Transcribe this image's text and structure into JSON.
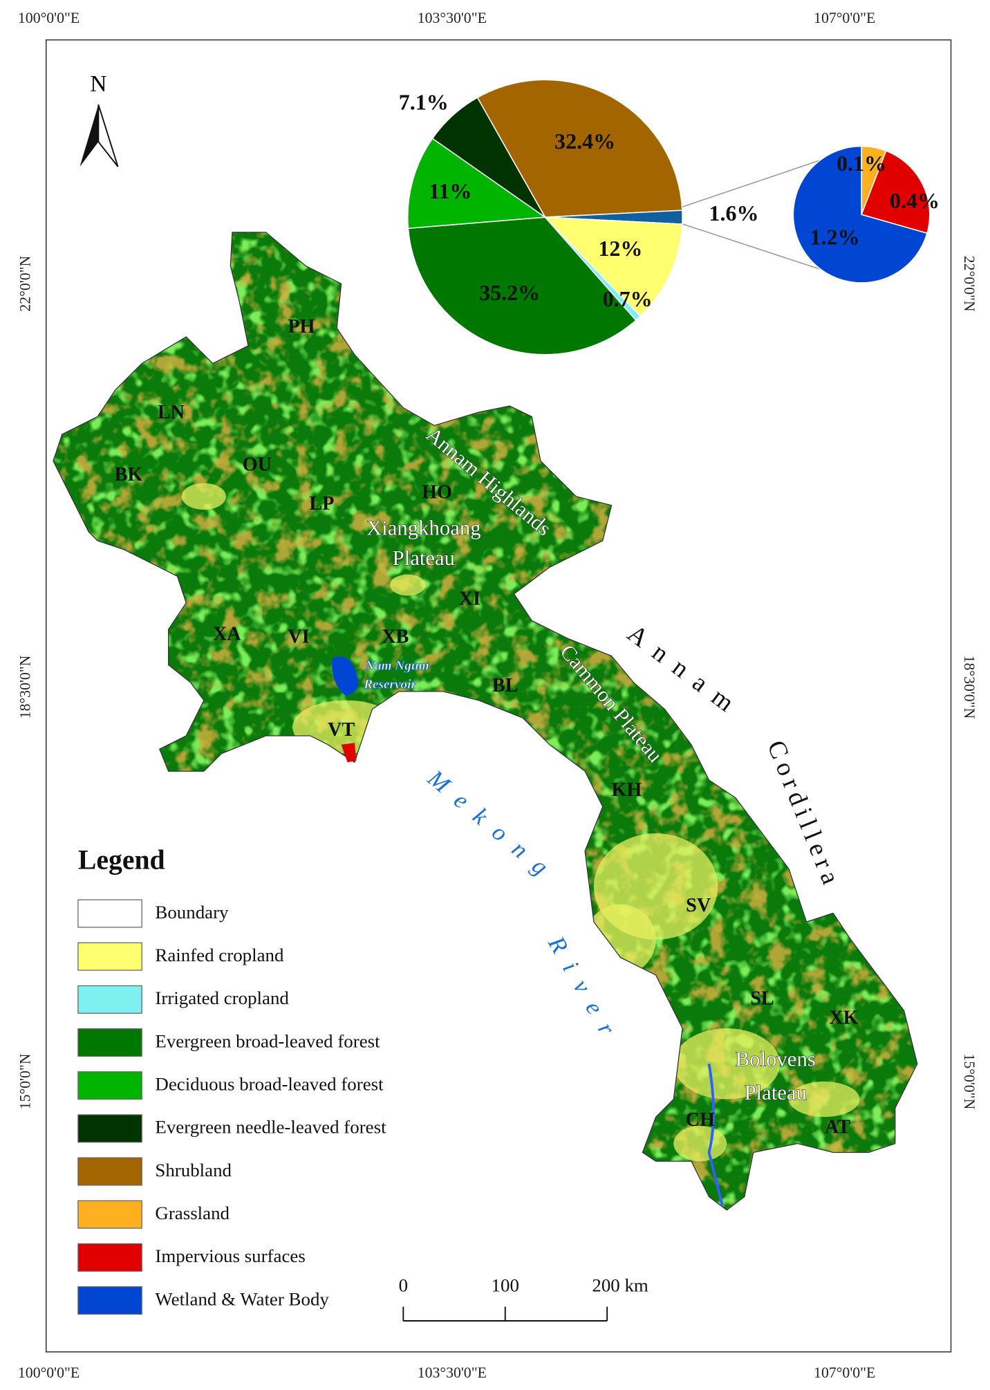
{
  "map": {
    "longitude_labels": [
      "100°0'0\"E",
      "103°30'0\"E",
      "107°0'0\"E"
    ],
    "latitude_labels": [
      "22°0'0\"N",
      "18°30'0\"N",
      "15°0'0\"N"
    ],
    "north_label": "N",
    "provinces": [
      "PH",
      "LN",
      "BK",
      "OU",
      "LP",
      "HO",
      "XI",
      "XA",
      "VI",
      "XB",
      "BL",
      "VT",
      "KH",
      "SV",
      "SL",
      "XK",
      "CH",
      "AT"
    ],
    "features": {
      "annam_highlands": "Annam Highlands",
      "xiangkhoang": [
        "Xiangkhoang",
        "Plateau"
      ],
      "cammon": "Cammon Plateau",
      "annam": "Annam",
      "cordillera": "Cordillera",
      "mekong": "Mekong",
      "river": "River",
      "reservoir": [
        "Nam Ngum",
        "Reservoir"
      ],
      "bolovens": [
        "Bolovens",
        "Plateau"
      ]
    }
  },
  "chart_data": [
    {
      "type": "pie",
      "values": [
        32.4,
        1.6,
        12,
        0.7,
        35.2,
        11,
        7.1
      ],
      "value_labels": [
        "32.4%",
        "1.6%",
        "12%",
        "0.7%",
        "35.2%",
        "11%",
        "7.1%"
      ],
      "colors": [
        "#a36500",
        "#10609e",
        "#ffff70",
        "#7ff0f0",
        "#007800",
        "#00b400",
        "#003300"
      ]
    },
    {
      "type": "pie",
      "values": [
        0.1,
        0.4,
        1.2
      ],
      "value_labels": [
        "0.1%",
        "0.4%",
        "1.2%"
      ],
      "colors": [
        "#ffb020",
        "#e00000",
        "#0046d2"
      ]
    }
  ],
  "legend": {
    "title": "Legend",
    "items": [
      {
        "name": "Boundary",
        "color": "#ffffff"
      },
      {
        "name": "Rainfed cropland",
        "color": "#ffff70"
      },
      {
        "name": "Irrigated cropland",
        "color": "#7ff0f0"
      },
      {
        "name": "Evergreen broad-leaved forest",
        "color": "#007800"
      },
      {
        "name": "Deciduous broad-leaved forest",
        "color": "#00b400"
      },
      {
        "name": "Evergreen needle-leaved forest",
        "color": "#003300"
      },
      {
        "name": "Shrubland",
        "color": "#a36500"
      },
      {
        "name": "Grassland",
        "color": "#ffb020"
      },
      {
        "name": "Impervious surfaces",
        "color": "#e00000"
      },
      {
        "name": "Wetland & Water Body",
        "color": "#0046d2"
      }
    ]
  },
  "scale_bar": {
    "labels": [
      "0",
      "100",
      "200 km"
    ]
  }
}
